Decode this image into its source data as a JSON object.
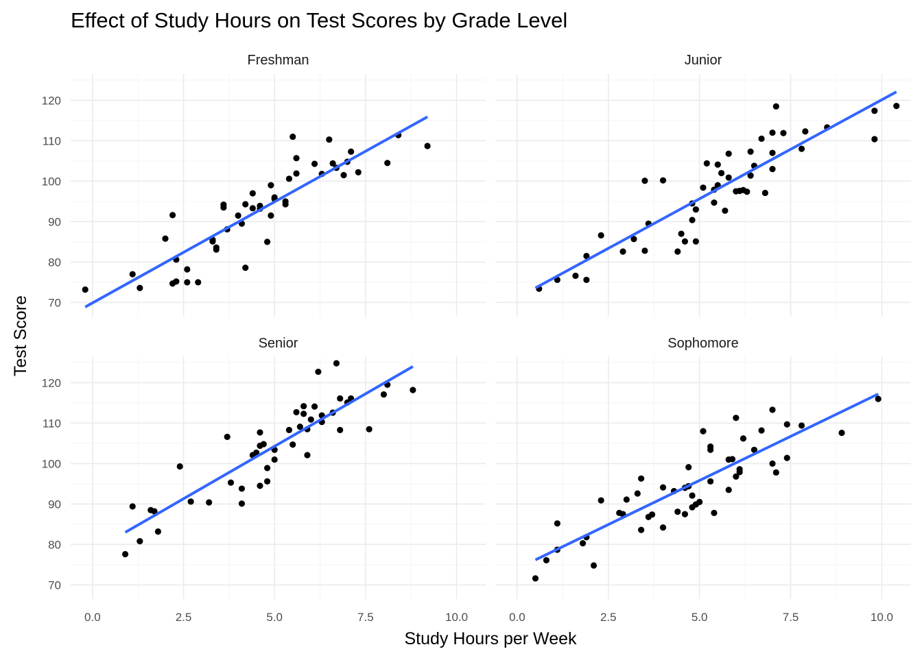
{
  "chart_data": {
    "type": "scatter",
    "title": "Effect of Study Hours on Test Scores by Grade Level",
    "xlabel": "Study Hours per Week",
    "ylabel": "Test Score",
    "xlim": [
      -0.6,
      10.8
    ],
    "ylim": [
      66.5,
      126.5
    ],
    "x_ticks": [
      0,
      2.5,
      5,
      7.5,
      10
    ],
    "x_tick_labels": [
      "0.0",
      "2.5",
      "5.0",
      "7.5",
      "10.0"
    ],
    "y_ticks": [
      70,
      80,
      90,
      100,
      110,
      120
    ],
    "y_tick_labels": [
      "70",
      "80",
      "90",
      "100",
      "110",
      "120"
    ],
    "grid": true,
    "legend": "none",
    "point_color": "#000000",
    "fit_color": "#3366FF",
    "panels": [
      {
        "name": "Freshman",
        "fit": {
          "x": [
            -0.2,
            9.2
          ],
          "y": [
            68.9,
            115.9
          ]
        },
        "points": [
          [
            -0.2,
            73.2
          ],
          [
            1.1,
            77.0
          ],
          [
            1.3,
            73.6
          ],
          [
            2.0,
            85.8
          ],
          [
            2.2,
            91.6
          ],
          [
            2.2,
            74.7
          ],
          [
            2.3,
            75.2
          ],
          [
            2.3,
            80.6
          ],
          [
            2.6,
            75.0
          ],
          [
            2.6,
            78.2
          ],
          [
            2.9,
            75.0
          ],
          [
            3.3,
            85.1
          ],
          [
            3.3,
            85.5
          ],
          [
            3.4,
            83.1
          ],
          [
            3.4,
            83.6
          ],
          [
            3.6,
            93.5
          ],
          [
            3.6,
            94.2
          ],
          [
            3.7,
            88.1
          ],
          [
            4.0,
            91.5
          ],
          [
            4.1,
            89.5
          ],
          [
            4.2,
            94.3
          ],
          [
            4.2,
            78.6
          ],
          [
            4.4,
            93.3
          ],
          [
            4.4,
            97.0
          ],
          [
            4.6,
            93.2
          ],
          [
            4.6,
            93.9
          ],
          [
            4.8,
            85.0
          ],
          [
            4.9,
            99.0
          ],
          [
            4.9,
            91.5
          ],
          [
            5.0,
            95.6
          ],
          [
            5.0,
            96.0
          ],
          [
            5.3,
            94.3
          ],
          [
            5.3,
            95.0
          ],
          [
            5.4,
            100.6
          ],
          [
            5.5,
            111.0
          ],
          [
            5.6,
            105.7
          ],
          [
            5.6,
            101.9
          ],
          [
            6.1,
            104.3
          ],
          [
            6.3,
            101.8
          ],
          [
            6.5,
            110.3
          ],
          [
            6.6,
            104.4
          ],
          [
            6.7,
            103.3
          ],
          [
            6.9,
            101.5
          ],
          [
            7.0,
            104.8
          ],
          [
            7.1,
            107.3
          ],
          [
            7.3,
            102.2
          ],
          [
            8.1,
            104.5
          ],
          [
            8.4,
            111.4
          ],
          [
            9.2,
            108.7
          ]
        ]
      },
      {
        "name": "Junior",
        "fit": {
          "x": [
            0.5,
            10.4
          ],
          "y": [
            73.6,
            122.1
          ]
        },
        "points": [
          [
            0.6,
            73.4
          ],
          [
            1.1,
            75.6
          ],
          [
            1.6,
            76.6
          ],
          [
            1.9,
            75.6
          ],
          [
            1.9,
            81.5
          ],
          [
            2.3,
            86.6
          ],
          [
            2.9,
            82.6
          ],
          [
            3.2,
            85.7
          ],
          [
            3.5,
            82.8
          ],
          [
            3.5,
            100.1
          ],
          [
            3.6,
            89.5
          ],
          [
            4.0,
            100.2
          ],
          [
            4.4,
            82.6
          ],
          [
            4.5,
            87.0
          ],
          [
            4.6,
            85.1
          ],
          [
            4.8,
            90.4
          ],
          [
            4.8,
            94.5
          ],
          [
            4.9,
            93.0
          ],
          [
            4.9,
            85.1
          ],
          [
            5.1,
            98.4
          ],
          [
            5.2,
            104.4
          ],
          [
            5.4,
            97.9
          ],
          [
            5.4,
            94.7
          ],
          [
            5.5,
            104.1
          ],
          [
            5.5,
            99.0
          ],
          [
            5.6,
            102.0
          ],
          [
            5.7,
            92.7
          ],
          [
            5.8,
            100.9
          ],
          [
            5.8,
            106.8
          ],
          [
            6.0,
            97.5
          ],
          [
            6.1,
            97.6
          ],
          [
            6.2,
            97.8
          ],
          [
            6.3,
            97.4
          ],
          [
            6.4,
            101.4
          ],
          [
            6.4,
            107.3
          ],
          [
            6.5,
            103.8
          ],
          [
            6.7,
            110.5
          ],
          [
            6.8,
            97.1
          ],
          [
            7.0,
            107.0
          ],
          [
            7.0,
            112.0
          ],
          [
            7.0,
            103.0
          ],
          [
            7.1,
            118.5
          ],
          [
            7.3,
            111.9
          ],
          [
            7.8,
            108.0
          ],
          [
            7.9,
            112.3
          ],
          [
            8.5,
            113.3
          ],
          [
            9.8,
            117.4
          ],
          [
            9.8,
            110.4
          ],
          [
            10.4,
            118.6
          ]
        ]
      },
      {
        "name": "Senior",
        "fit": {
          "x": [
            0.9,
            8.8
          ],
          "y": [
            83.0,
            124.0
          ]
        },
        "points": [
          [
            0.9,
            77.6
          ],
          [
            1.1,
            89.4
          ],
          [
            1.3,
            80.8
          ],
          [
            1.6,
            88.5
          ],
          [
            1.7,
            88.2
          ],
          [
            1.8,
            83.2
          ],
          [
            2.4,
            99.3
          ],
          [
            2.7,
            90.6
          ],
          [
            3.2,
            90.4
          ],
          [
            3.7,
            106.6
          ],
          [
            3.8,
            95.3
          ],
          [
            4.1,
            93.8
          ],
          [
            4.1,
            90.1
          ],
          [
            4.4,
            102.1
          ],
          [
            4.5,
            102.7
          ],
          [
            4.6,
            94.5
          ],
          [
            4.6,
            107.7
          ],
          [
            4.6,
            104.4
          ],
          [
            4.7,
            104.8
          ],
          [
            4.8,
            95.6
          ],
          [
            4.8,
            98.9
          ],
          [
            5.0,
            101.0
          ],
          [
            5.0,
            103.4
          ],
          [
            5.4,
            108.3
          ],
          [
            5.5,
            104.7
          ],
          [
            5.6,
            112.7
          ],
          [
            5.7,
            109.1
          ],
          [
            5.8,
            114.2
          ],
          [
            5.8,
            112.3
          ],
          [
            5.9,
            102.1
          ],
          [
            5.9,
            108.5
          ],
          [
            6.0,
            110.9
          ],
          [
            6.1,
            114.1
          ],
          [
            6.2,
            122.7
          ],
          [
            6.3,
            111.9
          ],
          [
            6.3,
            110.3
          ],
          [
            6.6,
            112.6
          ],
          [
            6.7,
            124.8
          ],
          [
            6.8,
            108.3
          ],
          [
            6.8,
            116.1
          ],
          [
            7.0,
            115.1
          ],
          [
            7.1,
            116.1
          ],
          [
            7.6,
            108.5
          ],
          [
            8.0,
            117.1
          ],
          [
            8.1,
            119.5
          ],
          [
            8.8,
            118.2
          ]
        ]
      },
      {
        "name": "Sophomore",
        "fit": {
          "x": [
            0.5,
            9.9
          ],
          "y": [
            76.2,
            117.2
          ]
        },
        "points": [
          [
            0.5,
            71.6
          ],
          [
            0.8,
            76.1
          ],
          [
            1.1,
            85.2
          ],
          [
            1.1,
            78.7
          ],
          [
            1.8,
            80.3
          ],
          [
            1.9,
            81.8
          ],
          [
            2.1,
            74.8
          ],
          [
            2.3,
            90.9
          ],
          [
            2.8,
            87.8
          ],
          [
            2.9,
            87.5
          ],
          [
            3.0,
            91.1
          ],
          [
            3.3,
            92.6
          ],
          [
            3.4,
            83.6
          ],
          [
            3.4,
            96.3
          ],
          [
            3.6,
            86.8
          ],
          [
            3.7,
            87.4
          ],
          [
            4.0,
            84.2
          ],
          [
            4.0,
            94.1
          ],
          [
            4.3,
            93.2
          ],
          [
            4.4,
            88.1
          ],
          [
            4.6,
            87.5
          ],
          [
            4.6,
            94.0
          ],
          [
            4.7,
            94.4
          ],
          [
            4.7,
            99.1
          ],
          [
            4.8,
            89.2
          ],
          [
            4.8,
            92.1
          ],
          [
            4.9,
            89.9
          ],
          [
            5.0,
            90.5
          ],
          [
            5.1,
            108.0
          ],
          [
            5.3,
            103.4
          ],
          [
            5.3,
            104.2
          ],
          [
            5.3,
            95.6
          ],
          [
            5.4,
            87.8
          ],
          [
            5.8,
            93.5
          ],
          [
            5.8,
            101.0
          ],
          [
            5.9,
            101.1
          ],
          [
            6.0,
            96.8
          ],
          [
            6.0,
            111.3
          ],
          [
            6.1,
            98.6
          ],
          [
            6.1,
            97.9
          ],
          [
            6.2,
            106.2
          ],
          [
            6.5,
            103.4
          ],
          [
            6.7,
            108.2
          ],
          [
            7.0,
            100.0
          ],
          [
            7.0,
            113.3
          ],
          [
            7.1,
            97.8
          ],
          [
            7.4,
            109.7
          ],
          [
            7.4,
            101.4
          ],
          [
            7.8,
            109.4
          ],
          [
            8.9,
            107.6
          ],
          [
            9.9,
            116.0
          ]
        ]
      }
    ]
  }
}
